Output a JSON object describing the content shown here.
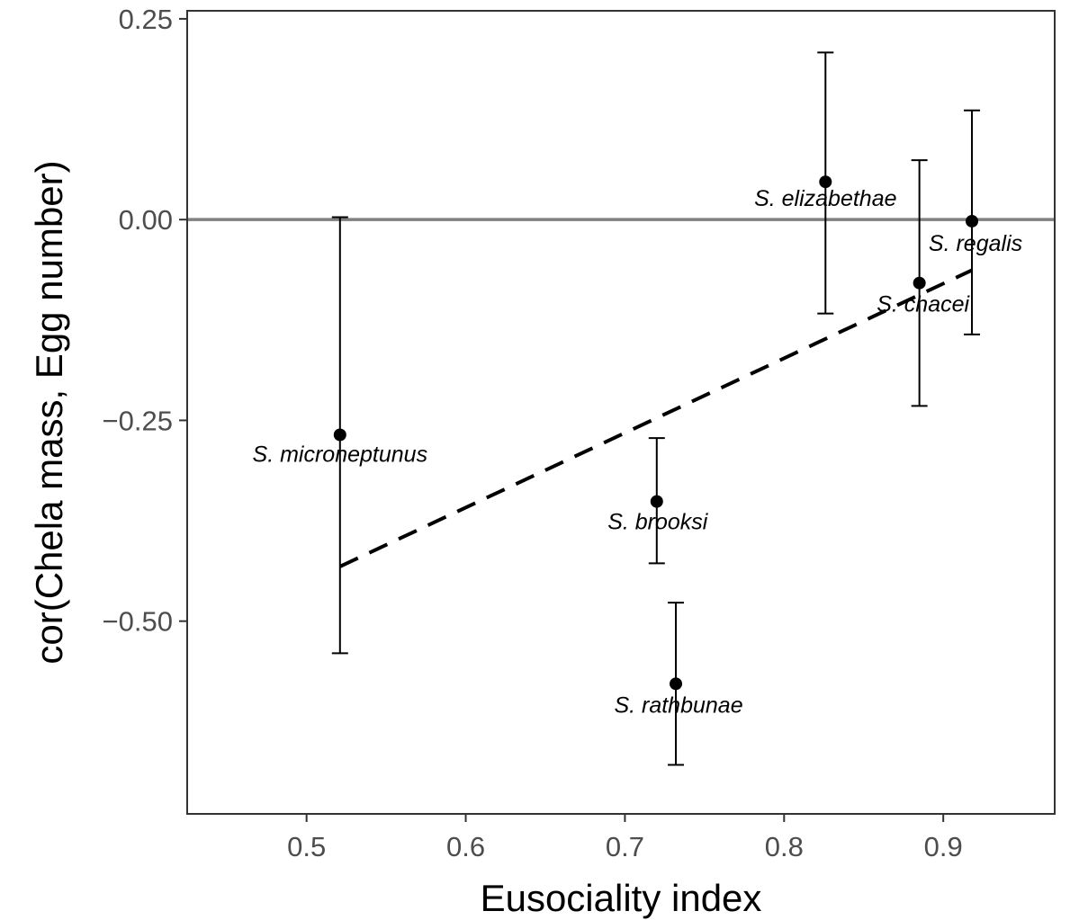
{
  "chart_data": {
    "type": "scatter",
    "title": "",
    "xlabel": "Eusociality index",
    "ylabel": "cor(Chela mass, Egg number)",
    "xlim": [
      0.425,
      0.97
    ],
    "ylim": [
      -0.74,
      0.26
    ],
    "x_ticks": [
      0.5,
      0.6,
      0.7,
      0.8,
      0.9
    ],
    "x_tick_labels": [
      "0.5",
      "0.6",
      "0.7",
      "0.8",
      "0.9"
    ],
    "y_ticks": [
      0.25,
      0.0,
      -0.25,
      -0.5
    ],
    "y_tick_labels": [
      "0.25",
      "0.00",
      "−0.25",
      "−0.50"
    ],
    "grid": false,
    "reference_line": {
      "y": 0.0,
      "color": "#808080"
    },
    "trend_line": {
      "style": "dashed",
      "x": [
        0.521,
        0.918
      ],
      "y": [
        -0.432,
        -0.063
      ]
    },
    "points": [
      {
        "label": "S. microneptunus",
        "x": 0.521,
        "y": -0.268,
        "y_low": -0.54,
        "y_high": 0.003
      },
      {
        "label": "S. brooksi",
        "x": 0.72,
        "y": -0.351,
        "y_low": -0.428,
        "y_high": -0.272
      },
      {
        "label": "S. rathbunae",
        "x": 0.732,
        "y": -0.578,
        "y_low": -0.679,
        "y_high": -0.477
      },
      {
        "label": "S. elizabethae",
        "x": 0.826,
        "y": 0.047,
        "y_low": -0.117,
        "y_high": 0.208
      },
      {
        "label": "S. chacei",
        "x": 0.885,
        "y": -0.079,
        "y_low": -0.232,
        "y_high": 0.074
      },
      {
        "label": "S. regalis",
        "x": 0.918,
        "y": -0.002,
        "y_low": -0.143,
        "y_high": 0.136
      }
    ]
  }
}
